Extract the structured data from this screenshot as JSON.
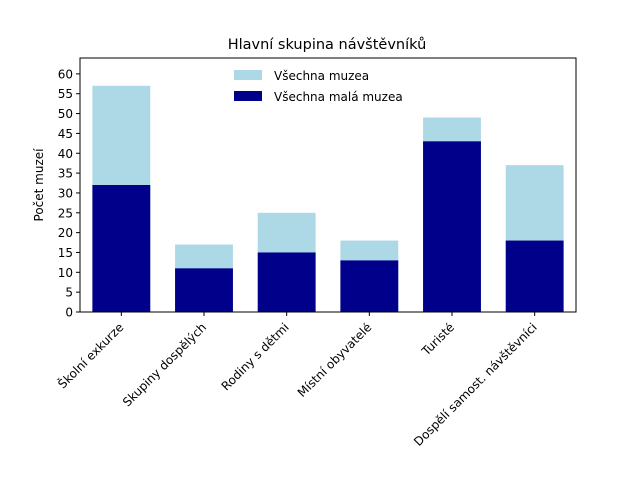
{
  "chart_data": {
    "type": "bar",
    "stacked": "overlay",
    "title": "Hlavní skupina návštěvníků",
    "xlabel": "",
    "ylabel": "Počet muzeí",
    "categories": [
      "Školní exkurze",
      "Skupiny dospělých",
      "Rodiny s dětmi",
      "Místní obyvatelé",
      "Turisté",
      "Dospělí samost. návštěvníci"
    ],
    "series": [
      {
        "name": "Všechna muzea",
        "values": [
          57,
          17,
          25,
          18,
          49,
          37
        ],
        "color": "#add8e6"
      },
      {
        "name": "Všechna malá muzea",
        "values": [
          32,
          11,
          15,
          13,
          43,
          18
        ],
        "color": "#00008b"
      }
    ],
    "ylim": [
      0,
      64
    ],
    "yticks": [
      0,
      5,
      10,
      15,
      20,
      25,
      30,
      35,
      40,
      45,
      50,
      55,
      60
    ],
    "grid": false,
    "legend_position": "top-center"
  }
}
